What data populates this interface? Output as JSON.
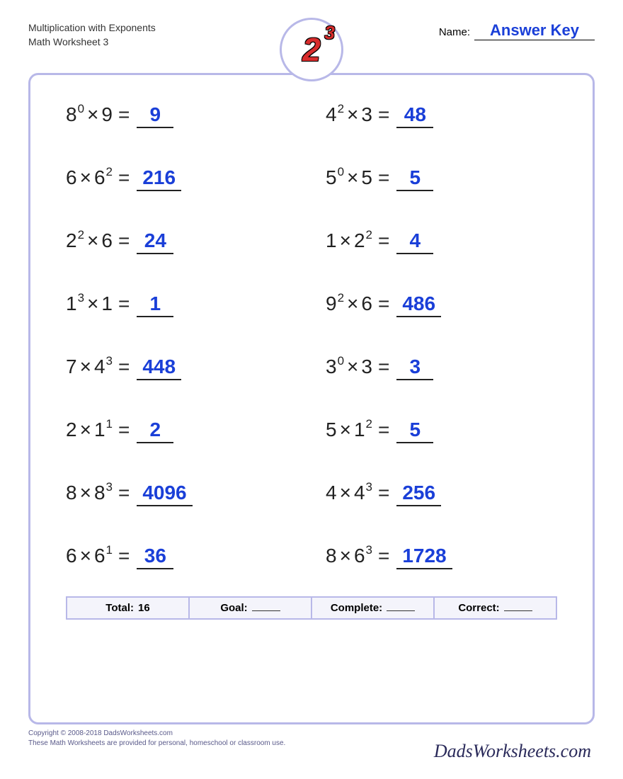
{
  "header": {
    "title_line1": "Multiplication with Exponents",
    "title_line2": "Math Worksheet 3",
    "name_label": "Name:",
    "name_value": "Answer Key"
  },
  "logo": {
    "base": "2",
    "exp": "3"
  },
  "problems": [
    {
      "a_base": "8",
      "a_exp": "0",
      "b_base": "9",
      "b_exp": "",
      "order": "ab",
      "answer": "9"
    },
    {
      "a_base": "4",
      "a_exp": "2",
      "b_base": "3",
      "b_exp": "",
      "order": "ab",
      "answer": "48"
    },
    {
      "a_base": "6",
      "a_exp": "",
      "b_base": "6",
      "b_exp": "2",
      "order": "ab",
      "answer": "216"
    },
    {
      "a_base": "5",
      "a_exp": "0",
      "b_base": "5",
      "b_exp": "",
      "order": "ab",
      "answer": "5"
    },
    {
      "a_base": "2",
      "a_exp": "2",
      "b_base": "6",
      "b_exp": "",
      "order": "ab",
      "answer": "24"
    },
    {
      "a_base": "1",
      "a_exp": "",
      "b_base": "2",
      "b_exp": "2",
      "order": "ab",
      "answer": "4"
    },
    {
      "a_base": "1",
      "a_exp": "3",
      "b_base": "1",
      "b_exp": "",
      "order": "ab",
      "answer": "1"
    },
    {
      "a_base": "9",
      "a_exp": "2",
      "b_base": "6",
      "b_exp": "",
      "order": "ab",
      "answer": "486"
    },
    {
      "a_base": "7",
      "a_exp": "",
      "b_base": "4",
      "b_exp": "3",
      "order": "ab",
      "answer": "448"
    },
    {
      "a_base": "3",
      "a_exp": "0",
      "b_base": "3",
      "b_exp": "",
      "order": "ab",
      "answer": "3"
    },
    {
      "a_base": "2",
      "a_exp": "",
      "b_base": "1",
      "b_exp": "1",
      "order": "ab",
      "answer": "2"
    },
    {
      "a_base": "5",
      "a_exp": "",
      "b_base": "1",
      "b_exp": "2",
      "order": "ab",
      "answer": "5"
    },
    {
      "a_base": "8",
      "a_exp": "",
      "b_base": "8",
      "b_exp": "3",
      "order": "ab",
      "answer": "4096"
    },
    {
      "a_base": "4",
      "a_exp": "",
      "b_base": "4",
      "b_exp": "3",
      "order": "ab",
      "answer": "256"
    },
    {
      "a_base": "6",
      "a_exp": "",
      "b_base": "6",
      "b_exp": "1",
      "order": "ab",
      "answer": "36"
    },
    {
      "a_base": "8",
      "a_exp": "",
      "b_base": "6",
      "b_exp": "3",
      "order": "ab",
      "answer": "1728"
    }
  ],
  "footer": {
    "total_label": "Total:",
    "total_value": "16",
    "goal_label": "Goal:",
    "complete_label": "Complete:",
    "correct_label": "Correct:"
  },
  "copyright": {
    "line1": "Copyright © 2008-2018 DadsWorksheets.com",
    "line2": "These Math Worksheets are provided for personal, homeschool or classroom use."
  },
  "site_brand": "DadsWorksheets.com",
  "style": {
    "answer_color": "#1a3fd8",
    "border_color": "#b8b8e8",
    "logo_red": "#d82c2c",
    "problem_fontsize": 28
  }
}
